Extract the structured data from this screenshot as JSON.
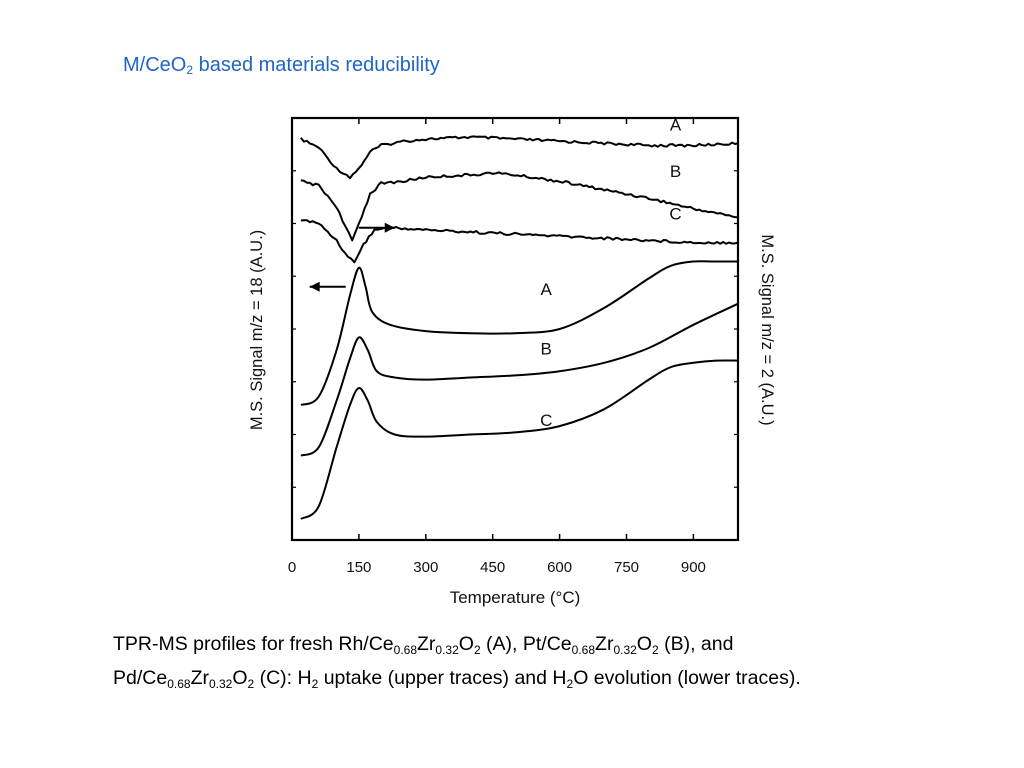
{
  "slide": {
    "title": {
      "parts": [
        {
          "t": "M/CeO"
        },
        {
          "t": "2",
          "sub": true
        },
        {
          "t": "  based materials reducibility"
        }
      ],
      "color": "#1f66c6"
    },
    "caption": {
      "lines": [
        [
          {
            "t": "TPR-MS profiles for fresh Rh/Ce"
          },
          {
            "t": "0.68",
            "sub": true
          },
          {
            "t": "Zr"
          },
          {
            "t": "0.32",
            "sub": true
          },
          {
            "t": "O"
          },
          {
            "t": "2",
            "sub": true
          },
          {
            "t": " (A), Pt/Ce"
          },
          {
            "t": "0.68",
            "sub": true
          },
          {
            "t": "Zr"
          },
          {
            "t": "0.32",
            "sub": true
          },
          {
            "t": "O"
          },
          {
            "t": "2",
            "sub": true
          },
          {
            "t": " (B), and"
          }
        ],
        [
          {
            "t": "Pd/Ce"
          },
          {
            "t": "0.68",
            "sub": true
          },
          {
            "t": "Zr"
          },
          {
            "t": "0.32",
            "sub": true
          },
          {
            "t": "O"
          },
          {
            "t": "2",
            "sub": true
          },
          {
            "t": " (C):  H"
          },
          {
            "t": "2",
            "sub": true
          },
          {
            "t": " uptake (upper traces) and H"
          },
          {
            "t": "2",
            "sub": true
          },
          {
            "t": "O evolution (lower traces)."
          }
        ]
      ]
    }
  },
  "chart_data": {
    "type": "line",
    "xlabel": "Temperature (°C)",
    "ylabel_left": "M.S. Signal m/z = 18 (A.U.)",
    "ylabel_right": "M.S. Signal m/z = 2 (A.U.)",
    "xlim": [
      0,
      1000
    ],
    "xticks": [
      0,
      150,
      300,
      450,
      600,
      750,
      900
    ],
    "ylim": [
      0,
      100
    ],
    "grid": false,
    "annotations": [
      {
        "type": "arrow",
        "direction": "right",
        "x": 190,
        "y": 74
      },
      {
        "type": "arrow",
        "direction": "left",
        "x": 80,
        "y": 60
      }
    ],
    "series": [
      {
        "name": "A",
        "group": "H2 uptake (m/z = 2)",
        "label_x": 860,
        "label_y": 97,
        "x": [
          20,
          60,
          100,
          130,
          150,
          175,
          200,
          250,
          300,
          400,
          500,
          600,
          700,
          800,
          900,
          1000
        ],
        "y": [
          95,
          93,
          88,
          86,
          88,
          92,
          93.5,
          94.5,
          95,
          95.5,
          95,
          94.5,
          94,
          93.5,
          93.5,
          94
        ]
      },
      {
        "name": "B",
        "group": "H2 uptake (m/z = 2)",
        "label_x": 860,
        "label_y": 86,
        "x": [
          20,
          60,
          100,
          120,
          135,
          150,
          175,
          200,
          250,
          300,
          400,
          450,
          500,
          600,
          700,
          800,
          900,
          1000
        ],
        "y": [
          85,
          84,
          79,
          74,
          71,
          75,
          82,
          84.5,
          85,
          86,
          86.5,
          87,
          86.5,
          85,
          83,
          81,
          78.5,
          76.5
        ]
      },
      {
        "name": "C",
        "group": "H2 uptake (m/z = 2)",
        "label_x": 860,
        "label_y": 76,
        "x": [
          20,
          60,
          100,
          125,
          140,
          160,
          185,
          220,
          300,
          400,
          500,
          600,
          700,
          800,
          900,
          1000
        ],
        "y": [
          76,
          75,
          71,
          67,
          66,
          70,
          73.5,
          74,
          73.5,
          73,
          72.5,
          72,
          71.5,
          71,
          70.5,
          70.5
        ]
      },
      {
        "name": "A",
        "group": "H2O evolution (m/z = 18)",
        "label_x": 570,
        "label_y": 58,
        "x": [
          20,
          60,
          100,
          130,
          150,
          165,
          180,
          220,
          300,
          400,
          500,
          600,
          700,
          800,
          850,
          900,
          950,
          1000
        ],
        "y": [
          32,
          34,
          45,
          58,
          64.5,
          60,
          54,
          51,
          49.5,
          49,
          49,
          50,
          55,
          62,
          65,
          66,
          66,
          66
        ]
      },
      {
        "name": "B",
        "group": "H2O evolution (m/z = 18)",
        "label_x": 570,
        "label_y": 44,
        "x": [
          20,
          60,
          100,
          130,
          150,
          170,
          190,
          230,
          300,
          400,
          500,
          600,
          700,
          800,
          900,
          1000
        ],
        "y": [
          20,
          22,
          33,
          43,
          48,
          45,
          40,
          38.5,
          38,
          38.5,
          39,
          40,
          42,
          45.5,
          51,
          56
        ]
      },
      {
        "name": "C",
        "group": "H2O evolution (m/z = 18)",
        "label_x": 570,
        "label_y": 27,
        "x": [
          20,
          60,
          100,
          130,
          150,
          170,
          190,
          230,
          300,
          400,
          500,
          600,
          700,
          800,
          850,
          900,
          950,
          1000
        ],
        "y": [
          5,
          8,
          22,
          32,
          36,
          33,
          28,
          25,
          24.5,
          25,
          25.5,
          27,
          31,
          38,
          41,
          42,
          42.5,
          42.5
        ]
      }
    ]
  }
}
